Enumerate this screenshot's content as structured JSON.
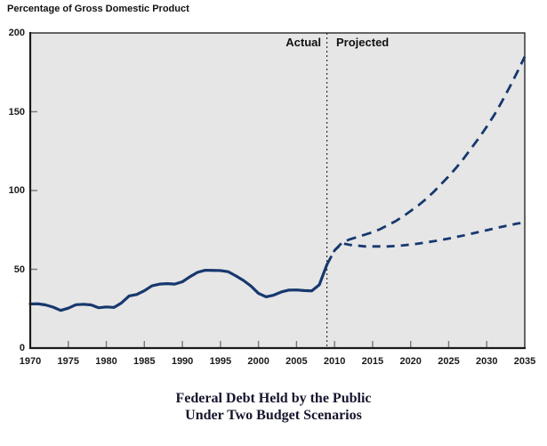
{
  "figure": {
    "y_axis_title": "Percentage of Gross Domestic Product",
    "annotations": {
      "actual": "Actual",
      "projected": "Projected"
    },
    "title_line1": "Federal Debt Held by the Public",
    "title_line2": "Under Two Budget Scenarios"
  },
  "colors": {
    "line_navy": "#17386e",
    "plot_background": "#e6e6e6",
    "axis": "#1a1a1a",
    "tick": "#777777",
    "divider": "#111111"
  },
  "chart_data": {
    "type": "line",
    "title": "Federal Debt Held by the Public Under Two Budget Scenarios",
    "xlabel": "",
    "ylabel": "Percentage of Gross Domestic Product",
    "xlim": [
      1970,
      2035
    ],
    "ylim": [
      0,
      200
    ],
    "x_ticks": [
      1970,
      1975,
      1980,
      1985,
      1990,
      1995,
      2000,
      2005,
      2010,
      2015,
      2020,
      2025,
      2030,
      2035
    ],
    "y_ticks": [
      0,
      50,
      100,
      150,
      200
    ],
    "grid": false,
    "legend_position": "none",
    "divider_year": 2009,
    "annotations": [
      "Actual",
      "Projected"
    ],
    "series": [
      {
        "name": "actual",
        "style": "solid",
        "x": [
          1970,
          1971,
          1972,
          1973,
          1974,
          1975,
          1976,
          1977,
          1978,
          1979,
          1980,
          1981,
          1982,
          1983,
          1984,
          1985,
          1986,
          1987,
          1988,
          1989,
          1990,
          1991,
          1992,
          1993,
          1994,
          1995,
          1996,
          1997,
          1998,
          1999,
          2000,
          2001,
          2002,
          2003,
          2004,
          2005,
          2006,
          2007,
          2008,
          2009
        ],
        "values": [
          28.0,
          28.1,
          27.4,
          26.0,
          23.9,
          25.3,
          27.5,
          27.8,
          27.4,
          25.6,
          26.1,
          25.8,
          28.7,
          33.1,
          34.0,
          36.4,
          39.5,
          40.6,
          40.9,
          40.6,
          42.1,
          45.3,
          48.1,
          49.4,
          49.3,
          49.2,
          48.5,
          45.9,
          43.0,
          39.4,
          34.7,
          32.5,
          33.6,
          35.6,
          36.8,
          36.9,
          36.5,
          36.3,
          40.2,
          53.0
        ]
      },
      {
        "name": "projected-upper",
        "style": "dashed",
        "x": [
          2009,
          2010,
          2011,
          2012,
          2013,
          2014,
          2015,
          2016,
          2017,
          2018,
          2019,
          2020,
          2021,
          2022,
          2023,
          2024,
          2025,
          2026,
          2027,
          2028,
          2029,
          2030,
          2031,
          2032,
          2033,
          2034,
          2035
        ],
        "values": [
          53.0,
          62.0,
          67.0,
          69.0,
          70.5,
          72.0,
          73.5,
          75.5,
          78.0,
          80.5,
          83.5,
          87.0,
          90.5,
          94.5,
          99.0,
          104.0,
          109.0,
          114.5,
          120.5,
          127.0,
          133.5,
          140.5,
          148.0,
          156.5,
          165.5,
          175.0,
          185.0
        ]
      },
      {
        "name": "projected-lower",
        "style": "dashed",
        "x": [
          2009,
          2010,
          2011,
          2012,
          2013,
          2014,
          2015,
          2016,
          2017,
          2018,
          2019,
          2020,
          2021,
          2022,
          2023,
          2024,
          2025,
          2026,
          2027,
          2028,
          2029,
          2030,
          2031,
          2032,
          2033,
          2034,
          2035
        ],
        "values": [
          53.0,
          62.0,
          66.5,
          65.5,
          65.0,
          64.5,
          64.5,
          64.5,
          64.5,
          64.8,
          65.2,
          65.7,
          66.3,
          67.0,
          67.8,
          68.6,
          69.5,
          70.5,
          71.5,
          72.6,
          73.7,
          74.8,
          75.9,
          77.0,
          78.0,
          79.0,
          79.7
        ]
      }
    ]
  }
}
